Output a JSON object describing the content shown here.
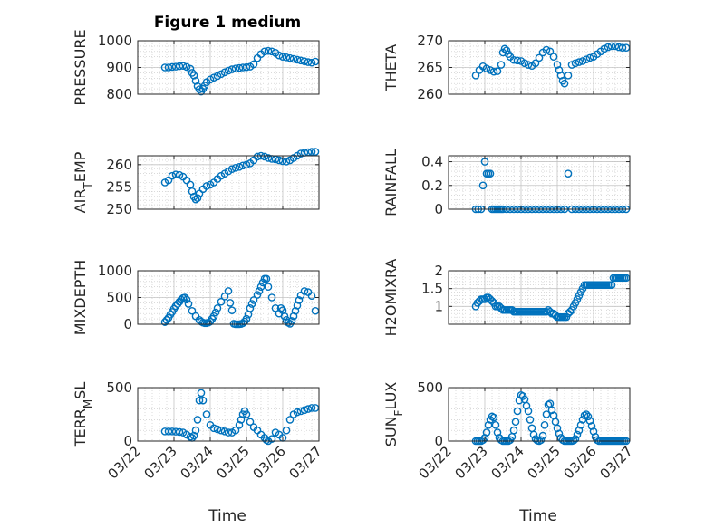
{
  "figure": {
    "title": "Figure 1 medium",
    "xlabel": "Time"
  },
  "colors": {
    "marker": "#0072BD",
    "axis": "#262626",
    "grid": "#c4c4c4"
  },
  "chart_data": [
    {
      "type": "scatter",
      "ylabel": "PRESSURE",
      "ylim": [
        800,
        1000
      ],
      "yticks": [
        "800",
        "900",
        "1000"
      ],
      "xlim": [
        22,
        27
      ],
      "xticks": [
        "03/22",
        "03/23",
        "03/24",
        "03/25",
        "03/26",
        "03/27"
      ],
      "show_xticklabels": false,
      "grid": true,
      "x": [
        22.75,
        22.85,
        22.95,
        23.05,
        23.15,
        23.25,
        23.35,
        23.45,
        23.5,
        23.55,
        23.6,
        23.65,
        23.7,
        23.75,
        23.8,
        23.85,
        23.9,
        24.0,
        24.1,
        24.2,
        24.3,
        24.4,
        24.5,
        24.6,
        24.7,
        24.8,
        24.9,
        25.0,
        25.1,
        25.2,
        25.3,
        25.4,
        25.5,
        25.6,
        25.7,
        25.8,
        25.9,
        26.0,
        26.1,
        26.2,
        26.3,
        26.4,
        26.5,
        26.6,
        26.7,
        26.8,
        26.9
      ],
      "y": [
        900,
        900,
        902,
        903,
        905,
        906,
        902,
        895,
        880,
        870,
        850,
        830,
        818,
        810,
        820,
        832,
        845,
        855,
        862,
        868,
        875,
        882,
        888,
        893,
        896,
        898,
        900,
        901,
        903,
        912,
        935,
        950,
        960,
        962,
        960,
        955,
        945,
        940,
        938,
        935,
        932,
        929,
        926,
        923,
        920,
        918,
        922
      ]
    },
    {
      "type": "scatter",
      "ylabel": "THETA",
      "ylim": [
        260,
        270
      ],
      "yticks": [
        "260",
        "265",
        "270"
      ],
      "xlim": [
        22,
        27
      ],
      "xticks": [
        "03/22",
        "03/23",
        "03/24",
        "03/25",
        "03/26",
        "03/27"
      ],
      "show_xticklabels": false,
      "grid": true,
      "x": [
        22.75,
        22.85,
        22.95,
        23.05,
        23.15,
        23.25,
        23.35,
        23.45,
        23.5,
        23.55,
        23.6,
        23.65,
        23.7,
        23.8,
        23.9,
        24.0,
        24.1,
        24.2,
        24.3,
        24.4,
        24.5,
        24.6,
        24.7,
        24.8,
        24.9,
        25.0,
        25.05,
        25.1,
        25.15,
        25.2,
        25.3,
        25.4,
        25.5,
        25.6,
        25.7,
        25.8,
        25.9,
        26.0,
        26.1,
        26.2,
        26.3,
        26.4,
        26.5,
        26.6,
        26.7,
        26.8,
        26.9
      ],
      "y": [
        263.5,
        264.5,
        265.2,
        264.8,
        264.5,
        264.2,
        264.3,
        265.5,
        267.8,
        268.5,
        268.2,
        267.5,
        267.0,
        266.4,
        266.3,
        266.2,
        265.8,
        265.5,
        265.3,
        265.8,
        266.8,
        267.8,
        268.3,
        268.0,
        267.0,
        265.5,
        264.5,
        263.5,
        262.5,
        262.0,
        263.5,
        265.5,
        265.8,
        266.0,
        266.2,
        266.5,
        266.8,
        267.0,
        267.5,
        268.0,
        268.5,
        268.8,
        269.0,
        269.0,
        268.8,
        268.7,
        268.7
      ]
    },
    {
      "type": "scatter",
      "ylabel": "AIR_TEMP",
      "ylim": [
        250,
        262
      ],
      "yticks": [
        "250",
        "255",
        "260"
      ],
      "xlim": [
        22,
        27
      ],
      "xticks": [
        "03/22",
        "03/23",
        "03/24",
        "03/25",
        "03/26",
        "03/27"
      ],
      "show_xticklabels": false,
      "grid": true,
      "x": [
        22.75,
        22.85,
        22.95,
        23.05,
        23.15,
        23.25,
        23.35,
        23.45,
        23.5,
        23.55,
        23.6,
        23.65,
        23.7,
        23.8,
        23.9,
        24.0,
        24.1,
        24.2,
        24.3,
        24.4,
        24.5,
        24.6,
        24.7,
        24.8,
        24.9,
        25.0,
        25.1,
        25.2,
        25.3,
        25.4,
        25.5,
        25.6,
        25.7,
        25.8,
        25.9,
        26.0,
        26.1,
        26.2,
        26.3,
        26.4,
        26.5,
        26.6,
        26.7,
        26.8,
        26.9
      ],
      "y": [
        256.0,
        256.5,
        257.5,
        257.8,
        257.7,
        257.3,
        256.5,
        255.5,
        254.0,
        252.8,
        252.2,
        252.5,
        253.5,
        254.5,
        255.2,
        255.5,
        256.0,
        256.8,
        257.5,
        258.0,
        258.5,
        259.0,
        259.3,
        259.5,
        259.8,
        260.0,
        260.3,
        261.0,
        261.8,
        262.0,
        261.8,
        261.5,
        261.3,
        261.2,
        261.0,
        260.8,
        260.7,
        261.0,
        261.5,
        262.0,
        262.5,
        262.7,
        262.8,
        262.9,
        262.9
      ]
    },
    {
      "type": "scatter",
      "ylabel": "RAINFALL",
      "ylim": [
        0,
        0.45
      ],
      "yticks": [
        "0",
        "0.2",
        "0.4"
      ],
      "xlim": [
        22,
        27
      ],
      "xticks": [
        "03/22",
        "03/23",
        "03/24",
        "03/25",
        "03/26",
        "03/27"
      ],
      "show_xticklabels": false,
      "grid": true,
      "x": [
        22.75,
        22.82,
        22.9,
        22.95,
        23.0,
        23.05,
        23.1,
        23.15,
        23.2,
        23.25,
        23.3,
        23.35,
        23.4,
        23.45,
        23.5,
        23.6,
        23.7,
        23.8,
        23.9,
        24.0,
        24.1,
        24.2,
        24.3,
        24.4,
        24.5,
        24.6,
        24.7,
        24.8,
        24.9,
        25.0,
        25.1,
        25.2,
        25.3,
        25.4,
        25.5,
        25.6,
        25.7,
        25.8,
        25.9,
        26.0,
        26.1,
        26.2,
        26.3,
        26.4,
        26.5,
        26.6,
        26.7,
        26.8,
        26.9
      ],
      "y": [
        0,
        0,
        0,
        0.2,
        0.4,
        0.3,
        0.3,
        0.3,
        0,
        0,
        0,
        0,
        0,
        0,
        0,
        0,
        0,
        0,
        0,
        0,
        0,
        0,
        0,
        0,
        0,
        0,
        0,
        0,
        0,
        0,
        0,
        0,
        0.3,
        0,
        0,
        0,
        0,
        0,
        0,
        0,
        0,
        0,
        0,
        0,
        0,
        0,
        0,
        0,
        0
      ]
    },
    {
      "type": "scatter",
      "ylabel": "MIXDEPTH",
      "ylim": [
        0,
        1000
      ],
      "yticks": [
        "0",
        "500",
        "1000"
      ],
      "xlim": [
        22,
        27
      ],
      "xticks": [
        "03/22",
        "03/23",
        "03/24",
        "03/25",
        "03/26",
        "03/27"
      ],
      "show_xticklabels": false,
      "grid": true,
      "x": [
        22.75,
        22.8,
        22.85,
        22.9,
        22.95,
        23.0,
        23.05,
        23.1,
        23.15,
        23.2,
        23.25,
        23.3,
        23.35,
        23.4,
        23.5,
        23.6,
        23.7,
        23.75,
        23.8,
        23.85,
        23.9,
        23.95,
        24.0,
        24.05,
        24.1,
        24.15,
        24.2,
        24.3,
        24.4,
        24.5,
        24.55,
        24.6,
        24.65,
        24.7,
        24.75,
        24.8,
        24.85,
        24.9,
        24.95,
        25.0,
        25.05,
        25.1,
        25.15,
        25.2,
        25.3,
        25.35,
        25.4,
        25.45,
        25.5,
        25.55,
        25.6,
        25.7,
        25.8,
        25.9,
        25.95,
        26.0,
        26.05,
        26.1,
        26.15,
        26.2,
        26.25,
        26.3,
        26.35,
        26.4,
        26.45,
        26.5,
        26.6,
        26.7,
        26.8,
        26.9
      ],
      "y": [
        40,
        80,
        120,
        180,
        230,
        290,
        340,
        380,
        420,
        460,
        490,
        500,
        460,
        380,
        250,
        150,
        80,
        50,
        30,
        20,
        20,
        30,
        50,
        100,
        150,
        220,
        300,
        420,
        520,
        620,
        400,
        260,
        10,
        0,
        0,
        0,
        5,
        20,
        50,
        100,
        180,
        300,
        380,
        450,
        550,
        620,
        700,
        780,
        850,
        850,
        700,
        500,
        300,
        200,
        300,
        260,
        150,
        80,
        30,
        10,
        60,
        150,
        250,
        350,
        450,
        540,
        620,
        600,
        530,
        250
      ]
    },
    {
      "type": "scatter",
      "ylabel": "H2OMIXRA",
      "ylim": [
        0.5,
        2.0
      ],
      "yticks": [
        "1",
        "1.5",
        "2"
      ],
      "xlim": [
        22,
        27
      ],
      "xticks": [
        "03/22",
        "03/23",
        "03/24",
        "03/25",
        "03/26",
        "03/27"
      ],
      "show_xticklabels": false,
      "grid": true,
      "x": [
        22.75,
        22.8,
        22.85,
        22.9,
        22.95,
        23.0,
        23.05,
        23.1,
        23.15,
        23.2,
        23.25,
        23.3,
        23.35,
        23.4,
        23.45,
        23.5,
        23.55,
        23.6,
        23.65,
        23.7,
        23.75,
        23.8,
        23.85,
        23.9,
        23.95,
        24.0,
        24.05,
        24.1,
        24.15,
        24.2,
        24.25,
        24.3,
        24.35,
        24.4,
        24.45,
        24.5,
        24.55,
        24.6,
        24.65,
        24.7,
        24.75,
        24.8,
        24.85,
        24.9,
        24.95,
        25.0,
        25.05,
        25.1,
        25.15,
        25.2,
        25.25,
        25.3,
        25.35,
        25.4,
        25.45,
        25.5,
        25.55,
        25.6,
        25.65,
        25.7,
        25.75,
        25.8,
        25.85,
        25.9,
        25.95,
        26.0,
        26.05,
        26.1,
        26.15,
        26.2,
        26.25,
        26.3,
        26.35,
        26.4,
        26.45,
        26.5,
        26.55,
        26.6,
        26.65,
        26.7,
        26.75,
        26.8,
        26.85,
        26.9
      ],
      "y": [
        1.0,
        1.1,
        1.15,
        1.2,
        1.2,
        1.2,
        1.25,
        1.25,
        1.2,
        1.15,
        1.1,
        1.0,
        1.0,
        1.0,
        0.95,
        0.9,
        0.9,
        0.9,
        0.9,
        0.9,
        0.9,
        0.85,
        0.85,
        0.85,
        0.85,
        0.85,
        0.85,
        0.85,
        0.85,
        0.85,
        0.85,
        0.85,
        0.85,
        0.85,
        0.85,
        0.85,
        0.85,
        0.85,
        0.85,
        0.85,
        0.9,
        0.85,
        0.8,
        0.8,
        0.75,
        0.7,
        0.7,
        0.7,
        0.7,
        0.7,
        0.7,
        0.8,
        0.85,
        0.9,
        1.0,
        1.1,
        1.2,
        1.3,
        1.4,
        1.5,
        1.6,
        1.6,
        1.6,
        1.6,
        1.6,
        1.6,
        1.6,
        1.6,
        1.6,
        1.6,
        1.6,
        1.6,
        1.6,
        1.6,
        1.6,
        1.6,
        1.8,
        1.8,
        1.8,
        1.8,
        1.8,
        1.8,
        1.8,
        1.8
      ]
    },
    {
      "type": "scatter",
      "ylabel": "TERR_MSL",
      "ylim": [
        0,
        500
      ],
      "yticks": [
        "0",
        "500"
      ],
      "xlim": [
        22,
        27
      ],
      "xticks": [
        "03/22",
        "03/23",
        "03/24",
        "03/25",
        "03/26",
        "03/27"
      ],
      "show_xticklabels": true,
      "grid": true,
      "x": [
        22.75,
        22.85,
        22.95,
        23.05,
        23.15,
        23.25,
        23.35,
        23.45,
        23.5,
        23.55,
        23.6,
        23.65,
        23.7,
        23.75,
        23.8,
        23.9,
        24.0,
        24.1,
        24.2,
        24.3,
        24.4,
        24.5,
        24.6,
        24.7,
        24.8,
        24.85,
        24.9,
        24.95,
        25.0,
        25.1,
        25.2,
        25.3,
        25.4,
        25.5,
        25.55,
        25.6,
        25.7,
        25.8,
        25.9,
        26.0,
        26.1,
        26.2,
        26.3,
        26.4,
        26.5,
        26.6,
        26.7,
        26.8,
        26.9
      ],
      "y": [
        90,
        90,
        90,
        88,
        85,
        80,
        60,
        40,
        30,
        50,
        100,
        200,
        380,
        450,
        380,
        250,
        150,
        120,
        110,
        100,
        90,
        80,
        80,
        100,
        150,
        200,
        250,
        280,
        250,
        180,
        130,
        100,
        60,
        30,
        10,
        0,
        20,
        80,
        60,
        30,
        100,
        200,
        250,
        270,
        280,
        290,
        300,
        310,
        310
      ]
    },
    {
      "type": "scatter",
      "ylabel": "SUN_FLUX",
      "ylim": [
        0,
        500
      ],
      "yticks": [
        "0",
        "500"
      ],
      "xlim": [
        22,
        27
      ],
      "xticks": [
        "03/22",
        "03/23",
        "03/24",
        "03/25",
        "03/26",
        "03/27"
      ],
      "show_xticklabels": true,
      "grid": true,
      "x": [
        22.75,
        22.8,
        22.85,
        22.9,
        22.95,
        23.0,
        23.05,
        23.1,
        23.15,
        23.2,
        23.25,
        23.3,
        23.35,
        23.4,
        23.45,
        23.5,
        23.55,
        23.6,
        23.65,
        23.7,
        23.75,
        23.8,
        23.85,
        23.9,
        23.95,
        24.0,
        24.05,
        24.1,
        24.15,
        24.2,
        24.25,
        24.3,
        24.35,
        24.4,
        24.45,
        24.5,
        24.55,
        24.6,
        24.65,
        24.7,
        24.75,
        24.8,
        24.85,
        24.9,
        24.95,
        25.0,
        25.05,
        25.1,
        25.15,
        25.2,
        25.25,
        25.3,
        25.35,
        25.4,
        25.45,
        25.5,
        25.55,
        25.6,
        25.65,
        25.7,
        25.75,
        25.8,
        25.85,
        25.9,
        25.95,
        26.0,
        26.05,
        26.1,
        26.15,
        26.2,
        26.25,
        26.3,
        26.35,
        26.4,
        26.45,
        26.5,
        26.55,
        26.6,
        26.65,
        26.7,
        26.75,
        26.8,
        26.85,
        26.9
      ],
      "y": [
        0,
        0,
        0,
        0,
        10,
        30,
        80,
        150,
        200,
        230,
        220,
        150,
        80,
        30,
        10,
        0,
        0,
        0,
        0,
        10,
        40,
        100,
        180,
        280,
        380,
        430,
        420,
        390,
        330,
        280,
        200,
        120,
        60,
        20,
        5,
        0,
        10,
        50,
        150,
        250,
        340,
        350,
        290,
        240,
        180,
        120,
        70,
        30,
        10,
        0,
        0,
        0,
        0,
        0,
        5,
        20,
        60,
        100,
        150,
        200,
        240,
        250,
        230,
        190,
        140,
        90,
        40,
        10,
        0,
        0,
        0,
        0,
        0,
        0,
        0,
        0,
        0,
        0,
        0,
        0,
        0,
        0,
        0,
        0
      ]
    }
  ]
}
